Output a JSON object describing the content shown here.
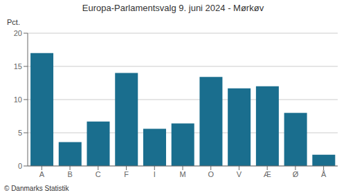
{
  "chart_data": {
    "type": "bar",
    "title": "Europa-Parlamentsvalg 9. juni 2024 - Mørkøv",
    "categories": [
      "A",
      "B",
      "C",
      "F",
      "I",
      "M",
      "O",
      "V",
      "Æ",
      "Ø",
      "Å"
    ],
    "values": [
      17.0,
      3.6,
      6.7,
      14.0,
      5.6,
      6.4,
      13.4,
      11.7,
      12.0,
      8.0,
      1.7
    ],
    "color": "#1a6e8e",
    "ylim": [
      0,
      20
    ],
    "yticks": [
      0,
      5,
      10,
      15,
      20
    ],
    "ylabel": "Pct.",
    "grid": true,
    "annotations": [
      "© Danmarks Statistik"
    ]
  }
}
